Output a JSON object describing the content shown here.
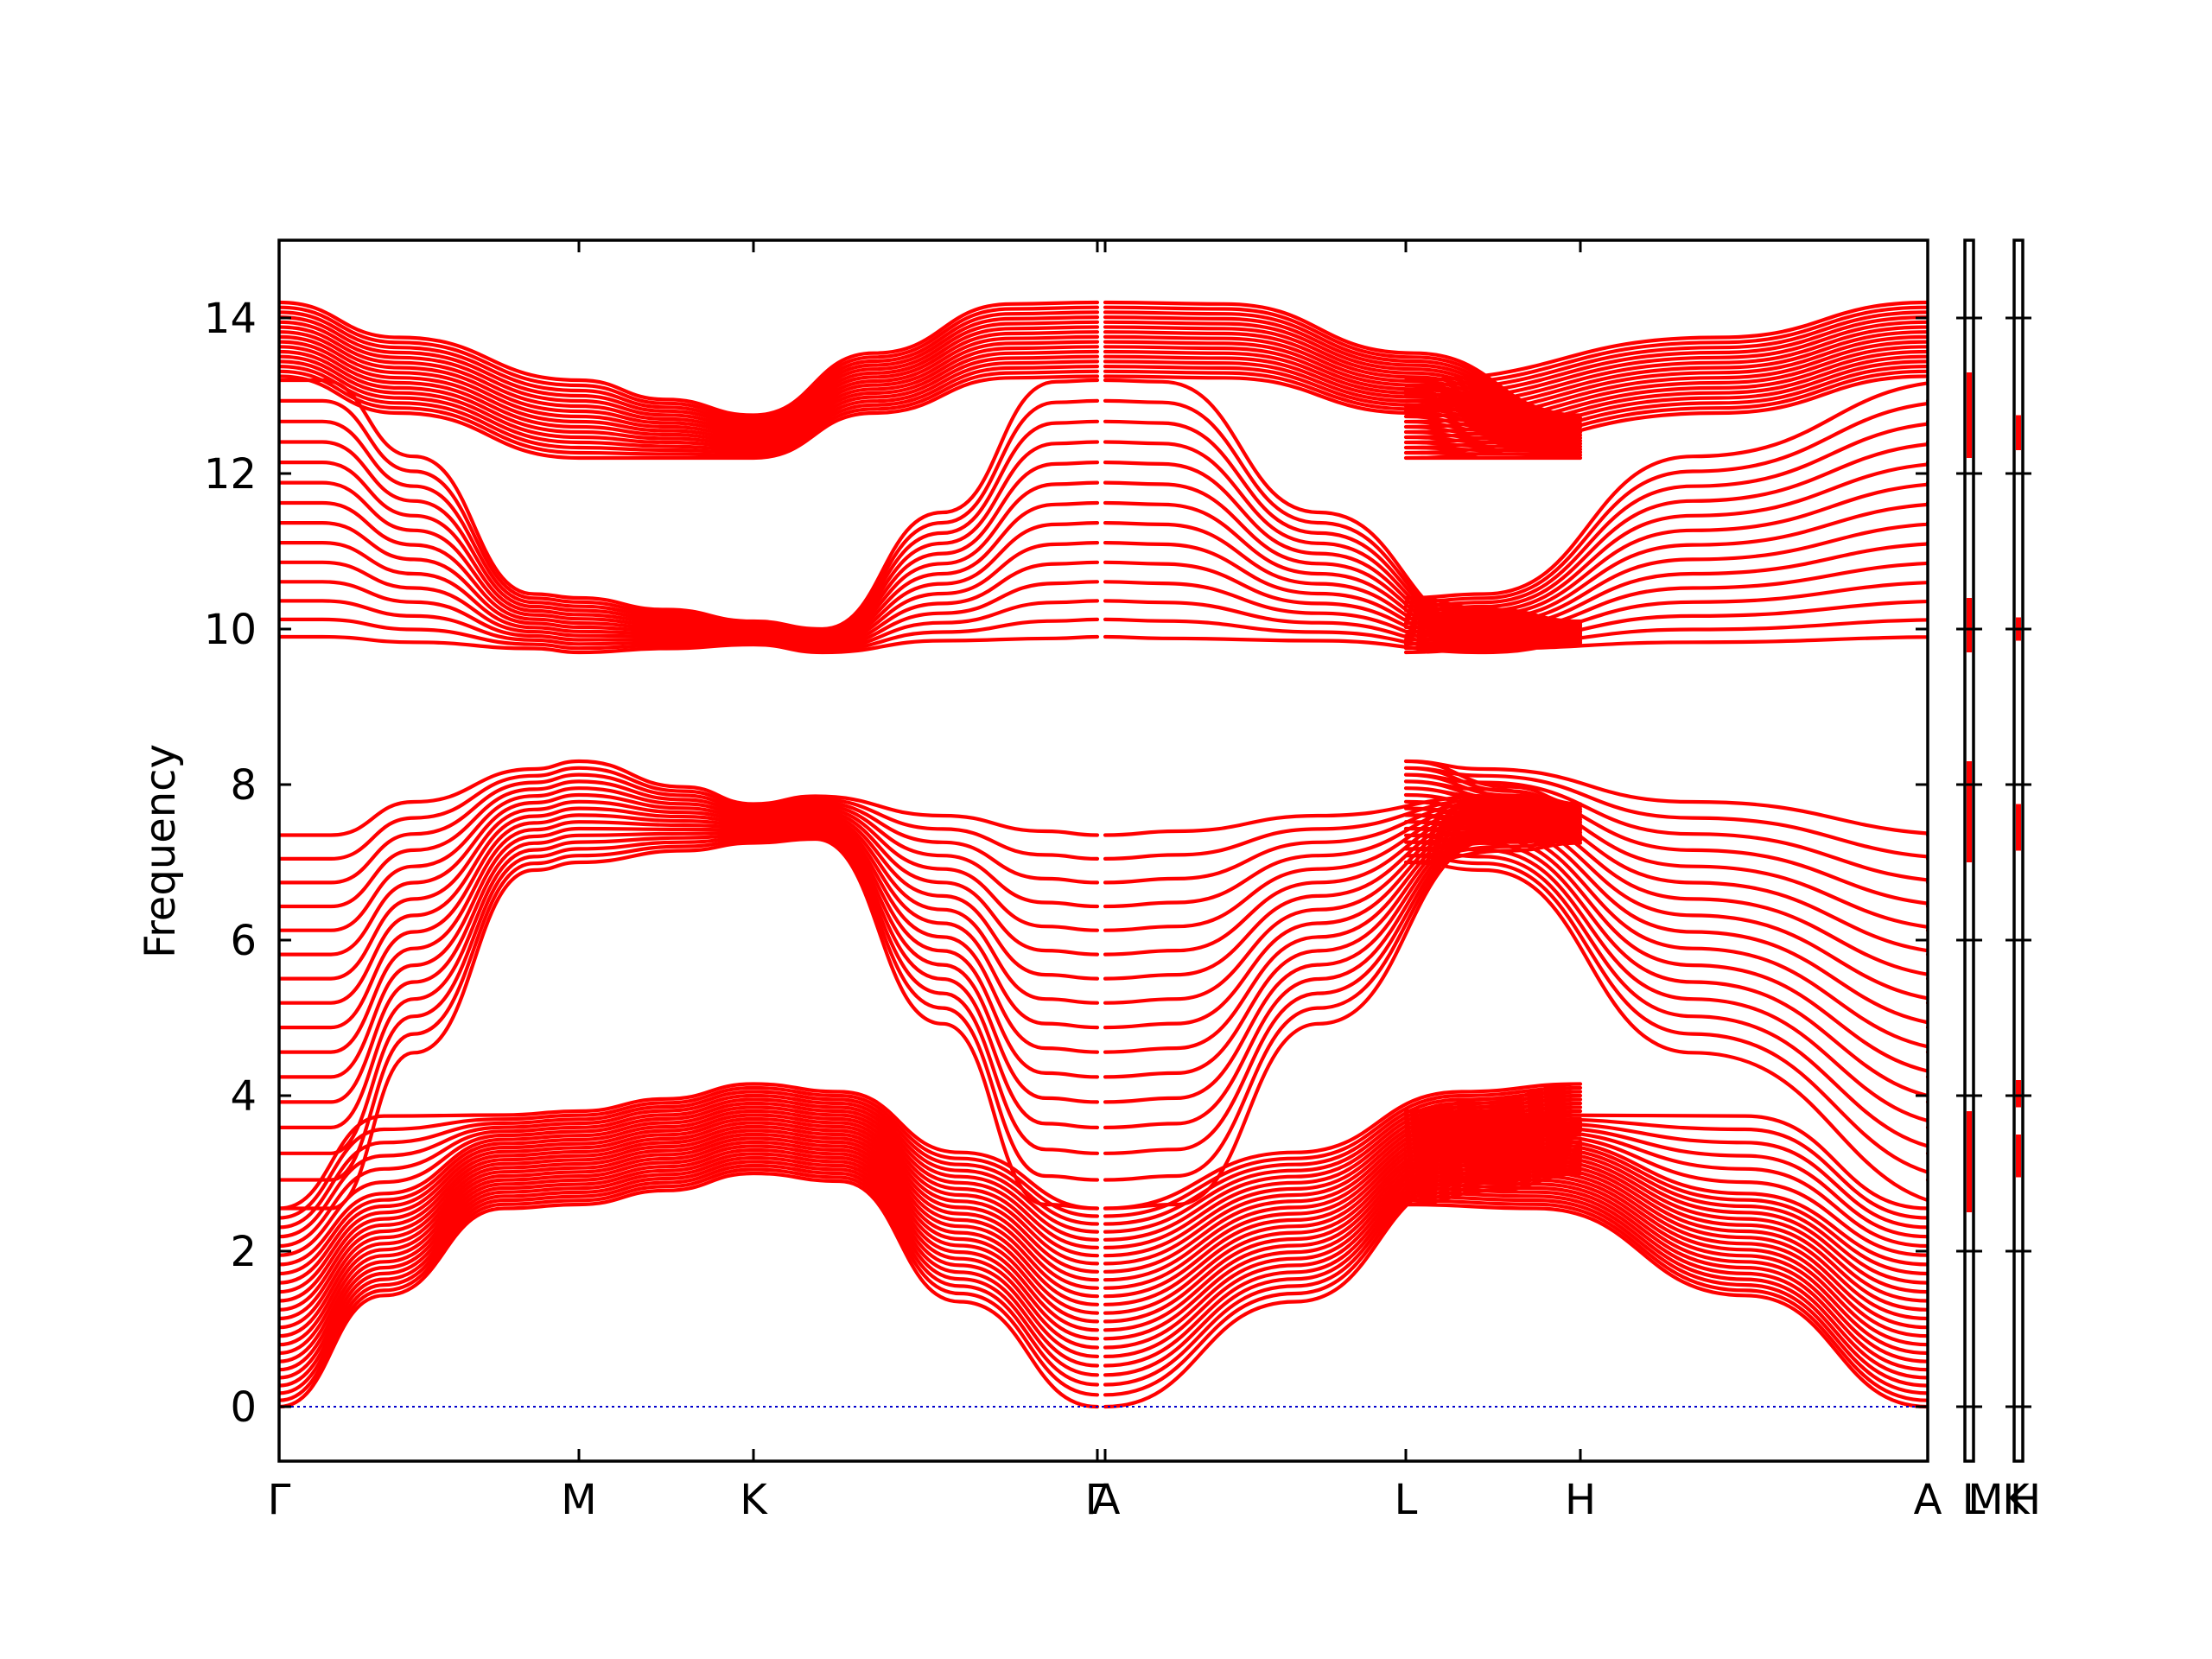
{
  "chart_data": {
    "type": "line",
    "title": "",
    "xlabel": "",
    "ylabel": "Frequency",
    "ylim": [
      -0.7,
      15
    ],
    "yticks": [
      0,
      2,
      4,
      6,
      8,
      10,
      12,
      14
    ],
    "grid": false,
    "legend": "none",
    "colors": {
      "bands": "#ff0000",
      "zero_line": "#0000cc",
      "frame": "#000000"
    },
    "segments": [
      {
        "name": "Γ-M-K-Γ",
        "labels": [
          "Γ",
          "M",
          "K",
          "Γ"
        ],
        "x": [
          0,
          0.577,
          0.911,
          1.577
        ]
      },
      {
        "name": "A-L-H-A",
        "labels": [
          "A",
          "L",
          "H",
          "A"
        ],
        "x": [
          1.577,
          2.154,
          2.488,
          3.154
        ]
      },
      {
        "name": "L|M",
        "labels": [
          "L",
          "M"
        ]
      },
      {
        "name": "K|H",
        "labels": [
          "K",
          "H"
        ]
      }
    ],
    "xtick_labels": [
      "Γ",
      "M",
      "K",
      "Γ",
      "A",
      "L",
      "H",
      "A",
      "L",
      "M",
      "K",
      "H"
    ],
    "high_symmetry_frequencies": {
      "Γ": {
        "acoustic_and_low_optical": [
          0,
          0.15,
          0.35,
          0.6,
          0.9,
          1.2,
          1.5,
          1.8,
          2.1,
          2.35,
          2.55
        ],
        "middle_band": [
          2.55,
          2.95,
          3.4,
          3.9,
          4.35,
          4.9,
          5.35,
          5.8,
          6.25,
          6.7,
          7.05,
          7.35
        ],
        "upper_band_low": [
          9.9,
          9.95,
          10.1,
          10.3,
          10.6,
          10.95,
          11.35,
          11.75,
          12.2,
          12.6,
          12.95,
          13.2
        ],
        "upper_band_high": [
          13.25,
          13.5,
          13.7,
          13.85,
          14.0,
          14.1,
          14.2
        ]
      },
      "M": {
        "group1": [
          2.6,
          2.8,
          3.0,
          3.2,
          3.4,
          3.6,
          3.8
        ],
        "group2": [
          7.0,
          7.2,
          7.4,
          7.6,
          7.8,
          8.0,
          8.3
        ],
        "group3": [
          9.7,
          9.8,
          9.9,
          10.0,
          10.2,
          10.4
        ],
        "group4": [
          12.2,
          12.4,
          12.6,
          12.8,
          13.0,
          13.2
        ]
      },
      "K": {
        "group1": [
          3.0,
          3.2,
          3.5,
          3.8,
          4.1
        ],
        "group2": [
          7.3,
          7.5,
          7.7
        ],
        "group3": [
          9.8,
          9.95,
          10.1
        ],
        "group4": [
          12.2,
          12.45,
          12.7
        ]
      }
    },
    "side_panels": [
      {
        "name": "L-M",
        "ranges": [
          [
            2.5,
            3.8
          ],
          [
            7.0,
            8.3
          ],
          [
            9.7,
            10.4
          ],
          [
            12.2,
            13.3
          ]
        ]
      },
      {
        "name": "K-H",
        "ranges": [
          [
            2.95,
            3.5
          ],
          [
            3.85,
            4.2
          ],
          [
            7.15,
            7.75
          ],
          [
            9.85,
            10.15
          ],
          [
            12.3,
            12.75
          ]
        ]
      }
    ]
  }
}
